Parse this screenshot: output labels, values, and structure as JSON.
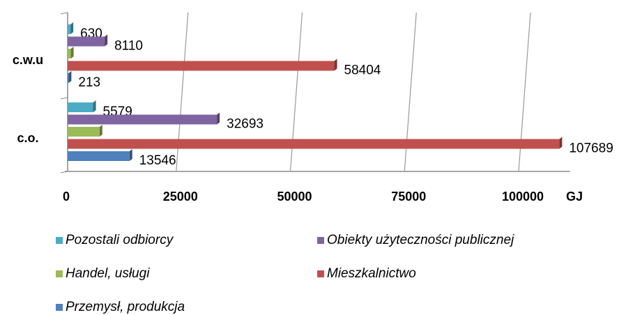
{
  "chart_data": {
    "type": "bar3d-horizontal",
    "categories": [
      "c.w.u",
      "c.o."
    ],
    "series": [
      {
        "name": "Pozostali odbiorcy",
        "color": "#4bacc6",
        "values": [
          630,
          5579
        ]
      },
      {
        "name": "Obiekty użyteczności publicznej",
        "color": "#8064a2",
        "values": [
          8110,
          32693
        ]
      },
      {
        "name": "Handel, usługi",
        "color": "#9bbb59",
        "values": [
          700,
          7000
        ],
        "data_labels": false
      },
      {
        "name": "Mieszkalnictwo",
        "color": "#c0504d",
        "values": [
          58404,
          107689
        ]
      },
      {
        "name": "Przemysł, produkcja",
        "color": "#4f81bd",
        "values": [
          213,
          13546
        ]
      }
    ],
    "x_label": "GJ",
    "xlim": [
      0,
      110000
    ],
    "xticks": [
      0,
      25000,
      50000,
      75000,
      100000
    ],
    "grid": true
  }
}
